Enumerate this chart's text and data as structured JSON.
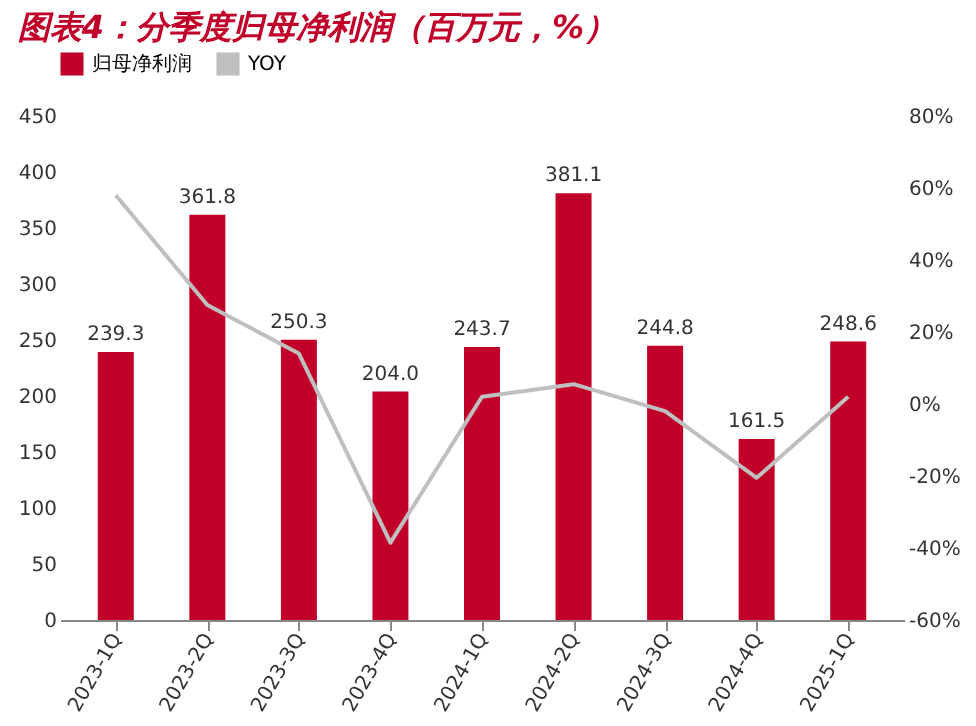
{
  "chart_data": {
    "type": "bar",
    "title": "图表4：分季度归母净利润（百万元，%）",
    "categories": [
      "2023-1Q",
      "2023-2Q",
      "2023-3Q",
      "2023-4Q",
      "2024-1Q",
      "2024-2Q",
      "2024-3Q",
      "2024-4Q",
      "2025-1Q"
    ],
    "series": [
      {
        "name": "归母净利润",
        "color": "#c00028",
        "values": [
          239.3,
          361.8,
          250.3,
          204.0,
          243.7,
          381.1,
          244.8,
          161.5,
          248.6
        ],
        "value_labels": [
          "239.3",
          "361.8",
          "250.3",
          "204.0",
          "243.7",
          "381.1",
          "244.8",
          "161.5",
          "248.6"
        ]
      },
      {
        "name": "YOY",
        "type": "line",
        "axis": "y2",
        "color": "#bfbfbf",
        "values": [
          58,
          27.5,
          14,
          -38.5,
          2,
          5.5,
          -2,
          -20.5,
          2
        ]
      }
    ],
    "ylim": [
      0,
      450
    ],
    "yticks": [
      0,
      50,
      100,
      150,
      200,
      250,
      300,
      350,
      400,
      450
    ],
    "y2lim": [
      -60,
      80
    ],
    "y2ticks": [
      {
        "value": -60,
        "label": "-60%"
      },
      {
        "value": -40,
        "label": "-40%"
      },
      {
        "value": -20,
        "label": "-20%"
      },
      {
        "value": 0,
        "label": "0%"
      },
      {
        "value": 20,
        "label": "20%"
      },
      {
        "value": 40,
        "label": "40%"
      },
      {
        "value": 60,
        "label": "60%"
      },
      {
        "value": 80,
        "label": "80%"
      }
    ],
    "legend": "top",
    "grid": false,
    "marker": "none"
  }
}
